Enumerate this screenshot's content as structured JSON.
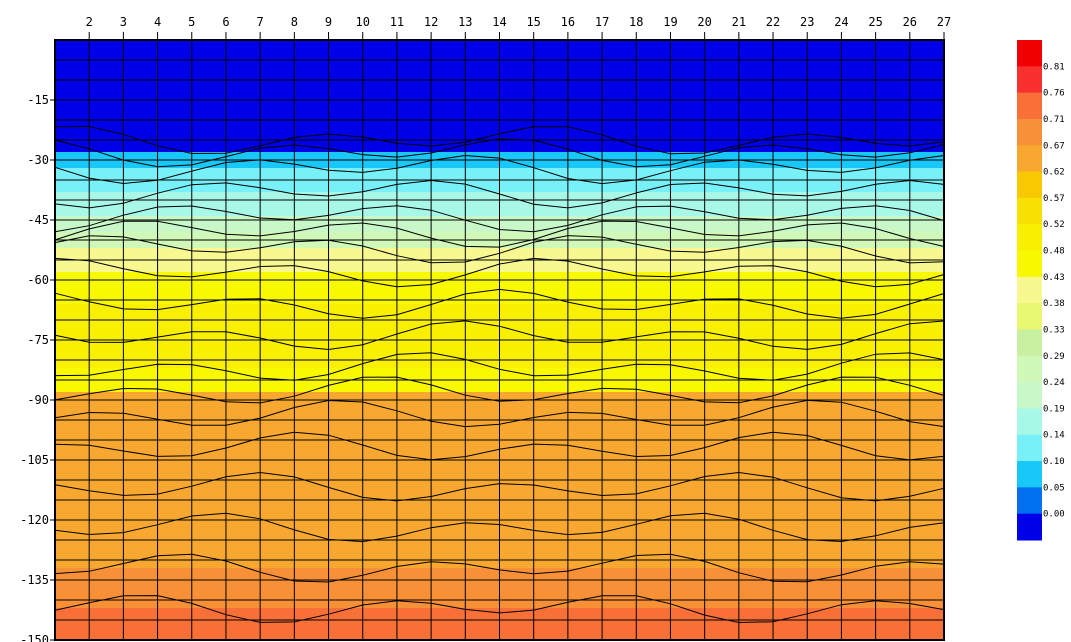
{
  "chart_data": {
    "type": "heatmap",
    "x_ticks": [
      "2",
      "3",
      "4",
      "5",
      "6",
      "7",
      "8",
      "9",
      "10",
      "11",
      "12",
      "13",
      "14",
      "15",
      "16",
      "17",
      "18",
      "19",
      "20",
      "21",
      "22",
      "23",
      "24",
      "25",
      "26",
      "27"
    ],
    "y_ticks": [
      "-15",
      "-30",
      "-45",
      "-60",
      "-75",
      "-90",
      "-105",
      "-120",
      "-135",
      "-150"
    ],
    "xlim": [
      1,
      27
    ],
    "ylim": [
      -150,
      0
    ],
    "grid": true,
    "legend": {
      "position": "right",
      "levels": [
        "0.00",
        "0.05",
        "0.10",
        "0.14",
        "0.19",
        "0.24",
        "0.29",
        "0.33",
        "0.38",
        "0.43",
        "0.48",
        "0.52",
        "0.57",
        "0.62",
        "0.67",
        "0.71",
        "0.76",
        "0.81"
      ],
      "colors": [
        "#0000e8",
        "#0070f0",
        "#18c8f8",
        "#78f0f8",
        "#a8f8e8",
        "#c8f8c8",
        "#d0f8b8",
        "#c8f0a0",
        "#e8f870",
        "#f8f890",
        "#f8f800",
        "#f8f000",
        "#f8e000",
        "#f8c800",
        "#f8a830",
        "#f89038",
        "#f87038",
        "#f83030",
        "#f00000"
      ]
    },
    "depth_profile": {
      "depths": [
        0,
        -25,
        -28,
        -32,
        -38,
        -44,
        -48,
        -52,
        -58,
        -66,
        -74,
        -82,
        -88,
        -94,
        -102,
        -112,
        -122,
        -132,
        -142,
        -150
      ],
      "values": [
        0.0,
        0.0,
        0.1,
        0.14,
        0.19,
        0.24,
        0.29,
        0.43,
        0.48,
        0.52,
        0.52,
        0.48,
        0.67,
        0.67,
        0.67,
        0.67,
        0.67,
        0.71,
        0.76,
        0.76
      ]
    }
  }
}
